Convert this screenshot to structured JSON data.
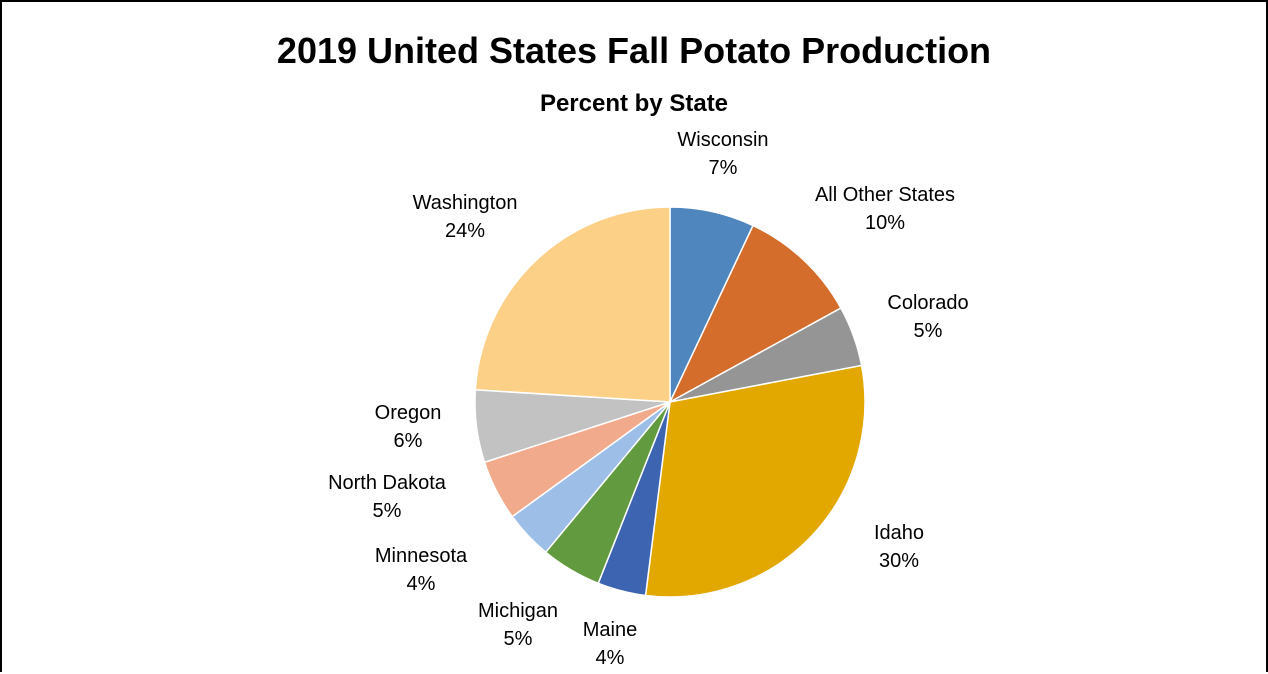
{
  "chart_data": {
    "type": "pie",
    "title": "2019 United States Fall Potato Production",
    "subtitle": "Percent by State",
    "start_angle_deg": 0,
    "direction": "clockwise",
    "slices": [
      {
        "label": "Wisconsin",
        "value": 7,
        "value_label": "7%",
        "color": "#4F86BE"
      },
      {
        "label": "All Other States",
        "value": 10,
        "value_label": "10%",
        "color": "#D46D2B"
      },
      {
        "label": "Colorado",
        "value": 5,
        "value_label": "5%",
        "color": "#959595"
      },
      {
        "label": "Idaho",
        "value": 30,
        "value_label": "30%",
        "color": "#E2A800"
      },
      {
        "label": "Maine",
        "value": 4,
        "value_label": "4%",
        "color": "#3D64B0"
      },
      {
        "label": "Michigan",
        "value": 5,
        "value_label": "5%",
        "color": "#629A40"
      },
      {
        "label": "Minnesota",
        "value": 4,
        "value_label": "4%",
        "color": "#9DBEE6"
      },
      {
        "label": "North Dakota",
        "value": 5,
        "value_label": "5%",
        "color": "#F1AB8C"
      },
      {
        "label": "Oregon",
        "value": 6,
        "value_label": "6%",
        "color": "#C2C2C2"
      },
      {
        "label": "Washington",
        "value": 24,
        "value_label": "24%",
        "color": "#FDD088"
      }
    ]
  }
}
